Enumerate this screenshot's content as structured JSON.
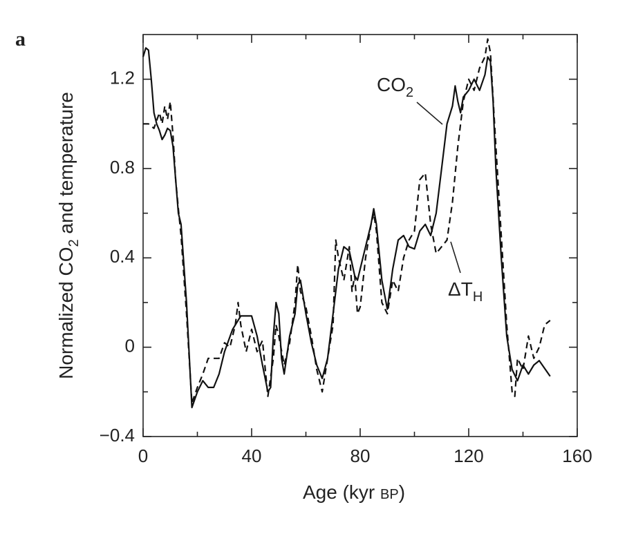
{
  "chart_data": {
    "type": "line",
    "panel_label": "a",
    "ylabel": {
      "text": "Normalized CO",
      "sub": "2",
      "tail": " and temperature"
    },
    "xlabel": {
      "text": "Age (kyr ",
      "smallcaps": "BP",
      "tail": ")"
    },
    "xlim": [
      0,
      160
    ],
    "xticks": [
      0,
      40,
      80,
      120,
      160
    ],
    "xminorticks": [
      20,
      60,
      100,
      140
    ],
    "ylim": [
      -0.4,
      1.4
    ],
    "yticks": [
      {
        "value": -0.4,
        "label": "−0.4"
      },
      0,
      0.4,
      0.8,
      1.2
    ],
    "yminorticks": [
      -0.2,
      0.2,
      0.6,
      1.0
    ],
    "series": [
      {
        "label": {
          "text": "CO",
          "sub": "2"
        },
        "color": "#111111",
        "dash": "none",
        "x": [
          0,
          1,
          2,
          3,
          4,
          5,
          6,
          7,
          8,
          9,
          10,
          11,
          12,
          13,
          14,
          16,
          18,
          20,
          22,
          24,
          26,
          28,
          30,
          33,
          36,
          40,
          42,
          44,
          46,
          47,
          48,
          49,
          50,
          51,
          52,
          54,
          56,
          57,
          58,
          60,
          62,
          64,
          66,
          68,
          70,
          72,
          74,
          76,
          78,
          79,
          80,
          82,
          84,
          85,
          86,
          88,
          90,
          92,
          94,
          96,
          98,
          100,
          102,
          104,
          106,
          108,
          110,
          112,
          114,
          115,
          116,
          117,
          118,
          120,
          122,
          124,
          126,
          127,
          128,
          129,
          130,
          132,
          134,
          136,
          138,
          140,
          142,
          144,
          146,
          150
        ],
        "values": [
          1.3,
          1.34,
          1.33,
          1.2,
          1.05,
          1.0,
          0.97,
          0.93,
          0.95,
          0.98,
          0.97,
          0.9,
          0.75,
          0.6,
          0.55,
          0.2,
          -0.27,
          -0.2,
          -0.15,
          -0.18,
          -0.18,
          -0.12,
          -0.02,
          0.08,
          0.14,
          0.14,
          0.05,
          -0.08,
          -0.2,
          -0.18,
          0.05,
          0.2,
          0.15,
          -0.05,
          -0.12,
          0.05,
          0.15,
          0.28,
          0.3,
          0.15,
          0.02,
          -0.08,
          -0.14,
          -0.05,
          0.15,
          0.35,
          0.45,
          0.43,
          0.32,
          0.3,
          0.35,
          0.45,
          0.55,
          0.62,
          0.55,
          0.3,
          0.17,
          0.35,
          0.48,
          0.5,
          0.45,
          0.44,
          0.52,
          0.55,
          0.5,
          0.6,
          0.8,
          1.0,
          1.08,
          1.17,
          1.1,
          1.05,
          1.12,
          1.15,
          1.2,
          1.15,
          1.22,
          1.3,
          1.28,
          1.1,
          0.8,
          0.4,
          0.05,
          -0.1,
          -0.15,
          -0.08,
          -0.12,
          -0.08,
          -0.06,
          -0.13
        ]
      },
      {
        "label": {
          "text": "ΔT",
          "sub": "H"
        },
        "color": "#111111",
        "dash": "9 6",
        "x": [
          0,
          2,
          4,
          6,
          7,
          8,
          9,
          10,
          11,
          12,
          13,
          14,
          16,
          18,
          20,
          22,
          24,
          26,
          28,
          30,
          32,
          34,
          35,
          36,
          38,
          40,
          42,
          44,
          46,
          48,
          49,
          50,
          52,
          54,
          56,
          57,
          58,
          60,
          62,
          64,
          66,
          68,
          70,
          71,
          72,
          74,
          76,
          77,
          78,
          79,
          80,
          82,
          84,
          85,
          86,
          88,
          90,
          92,
          94,
          96,
          98,
          100,
          102,
          104,
          106,
          108,
          110,
          112,
          114,
          116,
          118,
          120,
          122,
          124,
          126,
          127,
          128,
          130,
          132,
          134,
          136,
          137,
          138,
          140,
          142,
          144,
          146,
          148,
          150
        ],
        "values": [
          1.0,
          1.0,
          0.98,
          1.05,
          1.0,
          1.08,
          1.02,
          1.1,
          0.95,
          0.75,
          0.62,
          0.5,
          0.15,
          -0.25,
          -0.18,
          -0.12,
          -0.05,
          -0.05,
          -0.05,
          0.02,
          0.0,
          0.1,
          0.2,
          0.1,
          -0.02,
          0.08,
          -0.02,
          0.03,
          -0.22,
          -0.05,
          0.1,
          0.05,
          -0.08,
          0.02,
          0.2,
          0.37,
          0.25,
          0.18,
          0.05,
          -0.1,
          -0.2,
          -0.05,
          0.1,
          0.48,
          0.4,
          0.3,
          0.45,
          0.25,
          0.32,
          0.15,
          0.18,
          0.4,
          0.55,
          0.6,
          0.52,
          0.2,
          0.15,
          0.3,
          0.25,
          0.4,
          0.48,
          0.52,
          0.75,
          0.78,
          0.55,
          0.42,
          0.45,
          0.48,
          0.65,
          0.9,
          1.1,
          1.2,
          1.15,
          1.25,
          1.3,
          1.38,
          1.32,
          0.9,
          0.5,
          0.1,
          -0.2,
          -0.22,
          -0.05,
          -0.1,
          0.05,
          -0.05,
          0.0,
          0.1,
          0.12
        ]
      }
    ]
  }
}
